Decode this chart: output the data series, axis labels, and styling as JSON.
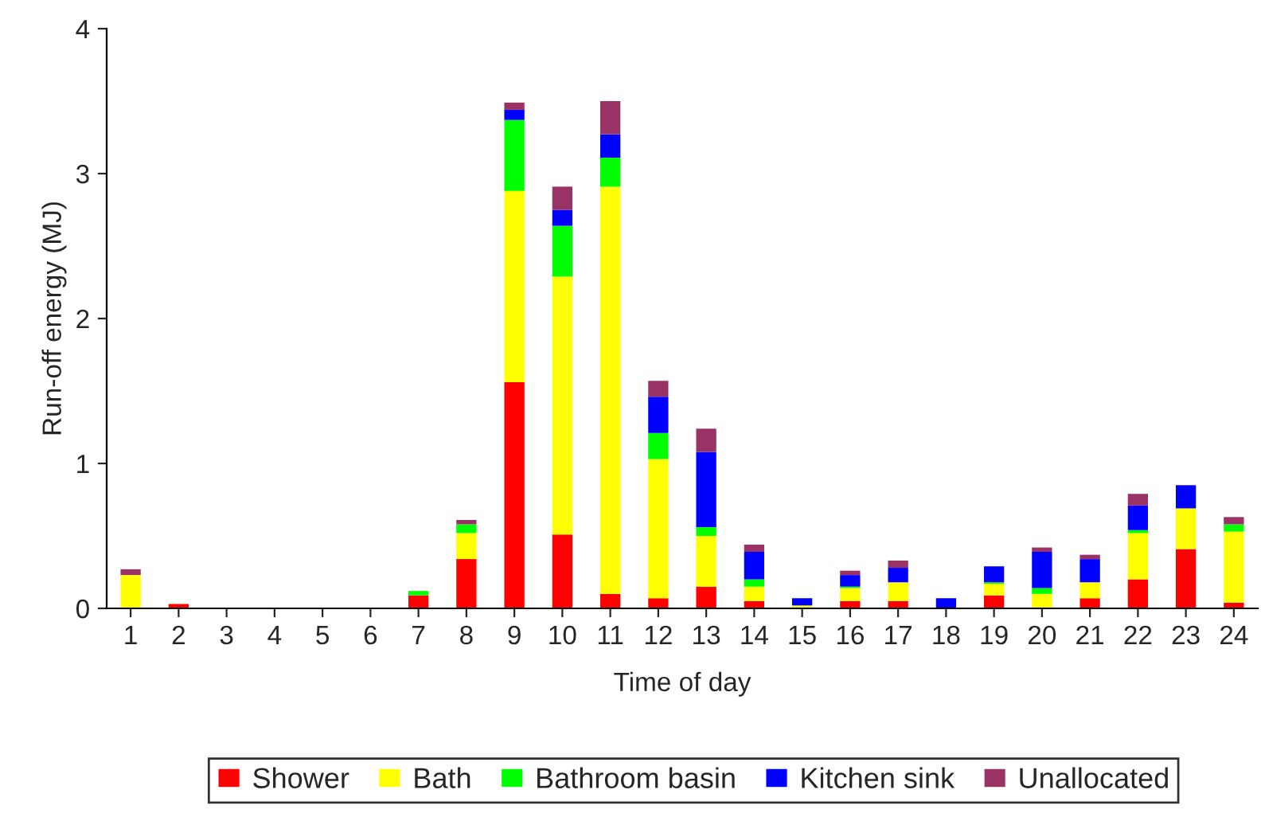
{
  "chart_data": {
    "type": "bar",
    "stacked": true,
    "xlabel": "Time of day",
    "ylabel": "Run-off energy (MJ)",
    "categories": [
      "1",
      "2",
      "3",
      "4",
      "5",
      "6",
      "7",
      "8",
      "9",
      "10",
      "11",
      "12",
      "13",
      "14",
      "15",
      "16",
      "17",
      "18",
      "19",
      "20",
      "21",
      "22",
      "23",
      "24"
    ],
    "series": [
      {
        "name": "Shower",
        "color": "#ff0000",
        "values": [
          0,
          0.03,
          0,
          0,
          0,
          0,
          0.09,
          0.34,
          1.56,
          0.51,
          0.1,
          0.07,
          0.15,
          0.05,
          0,
          0.05,
          0.05,
          0,
          0.09,
          0,
          0.07,
          0.2,
          0.41,
          0.04
        ]
      },
      {
        "name": "Bath",
        "color": "#ffff00",
        "values": [
          0.23,
          0,
          0,
          0,
          0,
          0,
          0,
          0.18,
          1.32,
          1.78,
          2.81,
          0.96,
          0.35,
          0.1,
          0.02,
          0.09,
          0.13,
          0,
          0.08,
          0.1,
          0.11,
          0.32,
          0.28,
          0.49
        ]
      },
      {
        "name": "Bathroom basin",
        "color": "#00ff00",
        "values": [
          0,
          0,
          0,
          0,
          0,
          0,
          0.03,
          0.06,
          0.49,
          0.35,
          0.2,
          0.18,
          0.06,
          0.05,
          0,
          0.01,
          0,
          0,
          0.01,
          0.04,
          0,
          0.02,
          0,
          0.05
        ]
      },
      {
        "name": "Kitchen sink",
        "color": "#0000ff",
        "values": [
          0,
          0,
          0,
          0,
          0,
          0,
          0,
          0,
          0.07,
          0.11,
          0.16,
          0.25,
          0.52,
          0.19,
          0.05,
          0.08,
          0.1,
          0.07,
          0.11,
          0.25,
          0.16,
          0.17,
          0.16,
          0
        ]
      },
      {
        "name": "Unallocated",
        "color": "#993366",
        "values": [
          0.04,
          0,
          0,
          0,
          0,
          0,
          0,
          0.03,
          0.05,
          0.16,
          0.23,
          0.11,
          0.16,
          0.05,
          0,
          0.03,
          0.05,
          0,
          0,
          0.03,
          0.03,
          0.08,
          0,
          0.05
        ]
      }
    ],
    "ylim": [
      0,
      4
    ],
    "yticks": [
      0,
      1,
      2,
      3,
      4
    ],
    "grid": false,
    "legend": "bottom"
  }
}
